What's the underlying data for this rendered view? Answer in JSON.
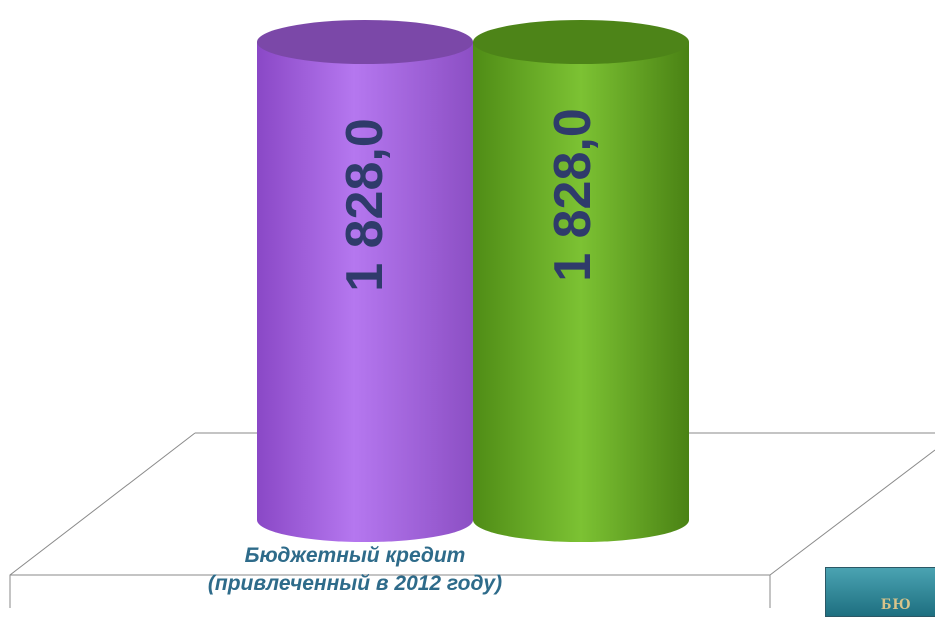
{
  "chart_data": {
    "type": "bar",
    "style": "3d-cylinder",
    "categories": [
      "Бюджетный кредит (привлеченный в 2012 году)"
    ],
    "category_label_lines": [
      "Бюджетный кредит",
      "(привлеченный в 2012 году)"
    ],
    "series": [
      {
        "values": [
          1828.0
        ],
        "data_labels": [
          "1 828,0"
        ],
        "color": "#a05fd6"
      },
      {
        "values": [
          1828.0
        ],
        "data_labels": [
          "1 828,0"
        ],
        "color": "#6aaa26"
      }
    ],
    "data_label_color": "#2f3b6b",
    "grid": false,
    "legend": "none"
  },
  "corner_badge": {
    "text": "БЮ"
  },
  "colors": {
    "purple_light": "#b475ee",
    "purple_dark": "#6f3aa0",
    "green_light": "#80c73a",
    "green_dark": "#3f7410",
    "floor_line": "#8a8a8a",
    "category_text": "#2e6b8a"
  }
}
